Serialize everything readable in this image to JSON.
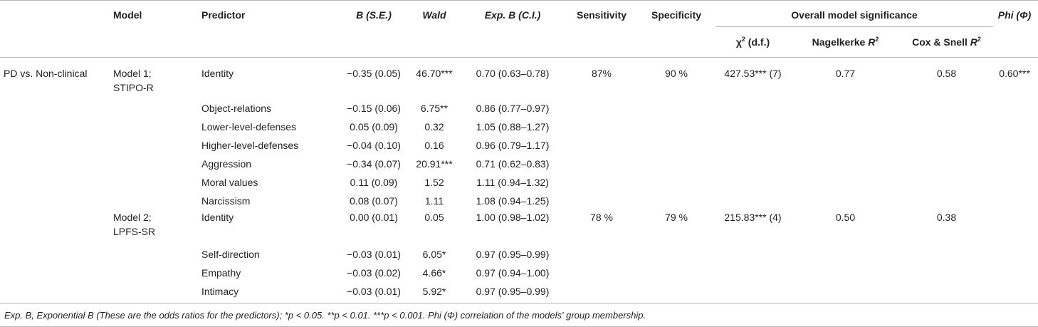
{
  "headers": {
    "model": "Model",
    "predictor": "Predictor",
    "b_se": "B (S.E.)",
    "wald": "Wald",
    "exp_b": "Exp. B (C.I.)",
    "sensitivity": "Sensitivity",
    "specificity": "Specificity",
    "overall": "Overall model significance",
    "phi": "Phi (Φ)",
    "chi": "χ",
    "chi_sup": "2",
    "chi_rest": " (d.f.)",
    "nagelkerke": "Nagelkerke ",
    "nagelkerke_r": "R",
    "nagelkerke_sup": "2",
    "cox": "Cox & Snell ",
    "cox_r": "R",
    "cox_sup": "2"
  },
  "group_label": "PD vs. Non-clinical",
  "models": [
    {
      "name_line1": "Model 1;",
      "name_line2": "STIPO-R",
      "sensitivity": "87%",
      "specificity": "90 %",
      "chi": "427.53*** (7)",
      "nagelkerke": "0.77",
      "cox": "0.58",
      "phi": "0.60***",
      "rows": [
        {
          "predictor": "Identity",
          "b": "−0.35 (0.05)",
          "wald": "46.70***",
          "exp": "0.70 (0.63–0.78)"
        },
        {
          "predictor": "Object-relations",
          "b": "−0.15 (0.06)",
          "wald": "6.75**",
          "exp": "0.86 (0.77–0.97)"
        },
        {
          "predictor": "Lower-level-defenses",
          "b": "0.05 (0.09)",
          "wald": "0.32",
          "exp": "1.05 (0.88–1.27)"
        },
        {
          "predictor": "Higher-level-defenses",
          "b": "−0.04 (0.10)",
          "wald": "0.16",
          "exp": "0.96 (0.79–1.17)"
        },
        {
          "predictor": "Aggression",
          "b": "−0.34 (0.07)",
          "wald": "20.91***",
          "exp": "0.71 (0.62–0.83)"
        },
        {
          "predictor": "Moral values",
          "b": "0.11 (0.09)",
          "wald": "1.52",
          "exp": "1.11 (0.94–1.32)"
        },
        {
          "predictor": "Narcissism",
          "b": "0.08 (0.07)",
          "wald": "1.11",
          "exp": "1.08 (0.94–1.25)"
        }
      ]
    },
    {
      "name_line1": "Model 2;",
      "name_line2": "LPFS-SR",
      "sensitivity": "78 %",
      "specificity": "79 %",
      "chi": "215.83*** (4)",
      "nagelkerke": "0.50",
      "cox": "0.38",
      "phi": "",
      "rows": [
        {
          "predictor": "Identity",
          "b": "0.00 (0.01)",
          "wald": "0.05",
          "exp": "1.00 (0.98–1.02)"
        },
        {
          "predictor": "Self-direction",
          "b": "−0.03 (0.01)",
          "wald": "6.05*",
          "exp": "0.97 (0.95–0.99)"
        },
        {
          "predictor": "Empathy",
          "b": "−0.03 (0.02)",
          "wald": "4.66*",
          "exp": "0.97 (0.94–1.00)"
        },
        {
          "predictor": "Intimacy",
          "b": "−0.03 (0.01)",
          "wald": "5.92*",
          "exp": "0.97 (0.95–0.99)"
        }
      ]
    }
  ],
  "footnote": "Exp. B, Exponential B (These are the odds ratios for the predictors); *p < 0.05. **p < 0.01. ***p < 0.001. Phi (Φ) correlation of the models' group membership."
}
